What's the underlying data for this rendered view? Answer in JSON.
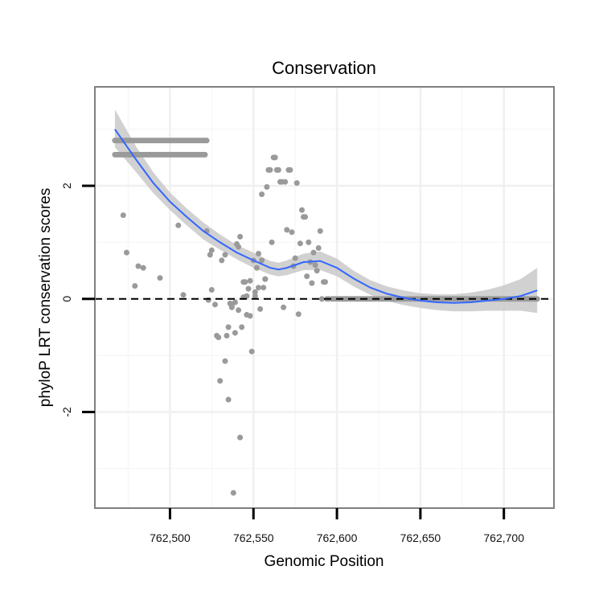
{
  "chart_data": {
    "type": "scatter",
    "title": "Conservation",
    "xlabel": "Genomic Position",
    "ylabel": "phyloP LRT conservation scores",
    "xlim": [
      762455,
      762730
    ],
    "ylim": [
      -3.7,
      3.75
    ],
    "x_ticks": [
      762500,
      762550,
      762600,
      762650,
      762700
    ],
    "x_tick_labels": [
      "762,500",
      "762,550",
      "762,600",
      "762,650",
      "762,700"
    ],
    "y_ticks": [
      -2,
      0,
      2
    ],
    "y_tick_labels": [
      "-2",
      "0",
      "2"
    ],
    "grid": true,
    "reference_line": {
      "y": 0,
      "style": "dashed"
    },
    "points": {
      "color": "#9a9a9a",
      "groups": [
        {
          "name": "upper band y=2.8",
          "x_start": 762467,
          "x_end": 762522,
          "step": 1,
          "y": 2.8
        },
        {
          "name": "lower band y=2.55",
          "x_start": 762467,
          "x_end": 762521,
          "step": 1,
          "y": 2.55
        },
        {
          "name": "zero band",
          "x_start": 762597,
          "x_end": 762720,
          "step": 1,
          "y": 0.0
        }
      ],
      "x": [
        762472,
        762474,
        762479,
        762481,
        762484,
        762494,
        762505,
        762508,
        762522,
        762523,
        762524,
        762525,
        762525,
        762527,
        762528,
        762529,
        762530,
        762531,
        762533,
        762533,
        762534,
        762535,
        762535,
        762536,
        762537,
        762537,
        762538,
        762539,
        762539,
        762540,
        762541,
        762541,
        762542,
        762542,
        762543,
        762544,
        762544,
        762545,
        762546,
        762546,
        762547,
        762548,
        762548,
        762549,
        762550,
        762551,
        762551,
        762552,
        762553,
        762553,
        762554,
        762555,
        762555,
        762556,
        762557,
        762557,
        762558,
        762559,
        762560,
        762561,
        762562,
        762563,
        762564,
        762565,
        762566,
        762567,
        762568,
        762569,
        762570,
        762571,
        762572,
        762573,
        762574,
        762575,
        762576,
        762577,
        762578,
        762579,
        762580,
        762581,
        762582,
        762583,
        762584,
        762585,
        762586,
        762587,
        762588,
        762589,
        762590,
        762591,
        762592,
        762593,
        762594,
        762595
      ],
      "y": [
        1.48,
        0.82,
        0.23,
        0.58,
        0.55,
        0.37,
        1.3,
        0.07,
        1.2,
        -0.02,
        0.78,
        0.16,
        0.86,
        -0.1,
        -0.65,
        -0.68,
        -1.45,
        0.68,
        0.78,
        -1.1,
        -0.65,
        -0.5,
        -1.78,
        -0.08,
        -0.15,
        -0.12,
        -3.43,
        -0.06,
        -0.6,
        0.97,
        0.92,
        -0.2,
        -2.45,
        1.1,
        -0.5,
        0.3,
        0.03,
        0.3,
        -0.28,
        0.05,
        0.18,
        0.32,
        -0.3,
        -0.93,
        0.68,
        0.05,
        0.12,
        0.55,
        0.2,
        0.8,
        -0.18,
        1.85,
        0.68,
        0.2,
        0.35,
        0.35,
        1.98,
        2.28,
        2.28,
        1.0,
        2.5,
        2.5,
        2.28,
        2.28,
        2.07,
        2.07,
        -0.15,
        2.07,
        1.22,
        2.28,
        2.28,
        1.18,
        0.58,
        0.72,
        2.05,
        -0.27,
        0.98,
        1.57,
        1.45,
        1.45,
        0.4,
        1.0,
        0.65,
        0.28,
        0.82,
        0.6,
        0.5,
        0.9,
        1.2,
        0.0,
        0.3,
        0.3,
        0.0,
        0.0
      ]
    },
    "smooth": {
      "color": "#3366ff",
      "method": "loess",
      "x": [
        762467,
        762480,
        762490,
        762500,
        762510,
        762520,
        762530,
        762540,
        762550,
        762560,
        762565,
        762570,
        762580,
        762590,
        762600,
        762610,
        762620,
        762630,
        762640,
        762650,
        762660,
        762670,
        762680,
        762690,
        762700,
        762710,
        762720
      ],
      "y": [
        3.0,
        2.45,
        2.05,
        1.72,
        1.45,
        1.2,
        1.0,
        0.82,
        0.68,
        0.55,
        0.52,
        0.55,
        0.65,
        0.67,
        0.55,
        0.36,
        0.2,
        0.09,
        0.02,
        -0.03,
        -0.06,
        -0.07,
        -0.06,
        -0.03,
        0.0,
        0.05,
        0.15
      ],
      "lower": [
        2.68,
        2.23,
        1.87,
        1.57,
        1.3,
        1.05,
        0.87,
        0.7,
        0.55,
        0.43,
        0.4,
        0.42,
        0.51,
        0.51,
        0.4,
        0.22,
        0.07,
        -0.04,
        -0.11,
        -0.16,
        -0.2,
        -0.22,
        -0.22,
        -0.21,
        -0.21,
        -0.21,
        -0.25
      ],
      "upper": [
        3.35,
        2.68,
        2.24,
        1.88,
        1.6,
        1.35,
        1.14,
        0.95,
        0.82,
        0.67,
        0.64,
        0.68,
        0.8,
        0.84,
        0.71,
        0.5,
        0.33,
        0.22,
        0.15,
        0.1,
        0.08,
        0.08,
        0.11,
        0.16,
        0.24,
        0.35,
        0.55
      ]
    }
  }
}
